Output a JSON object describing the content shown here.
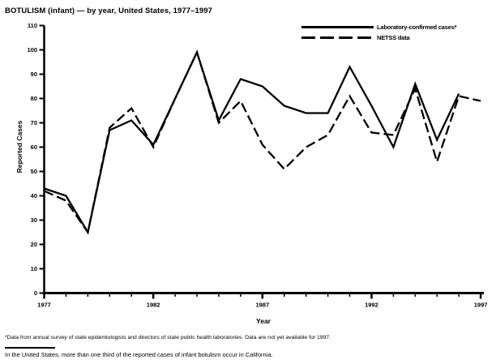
{
  "title": "BOTULISM (infant) — by year, United States, 1977–1997",
  "legend": [
    {
      "label": "Laboratory-confirmed cases*",
      "style": "solid"
    },
    {
      "label": "NETSS data",
      "style": "dashed"
    }
  ],
  "footnote": "*Data from annual survey of state epidemiologists and directors of state public health laboratories. Data are not yet available for 1997.",
  "note": "In the United States, more than one third of the reported cases of infant botulism occur in California.",
  "chart_data": {
    "type": "line",
    "title": "BOTULISM (infant) — by year, United States, 1977–1997",
    "xlabel": "Year",
    "ylabel": "Reported Cases",
    "ylim": [
      0,
      110
    ],
    "ytick_interval": 10,
    "grid": false,
    "legend_position": "top-right",
    "line_color": "#000000",
    "background": "#ffffff",
    "x": [
      1977,
      1978,
      1979,
      1980,
      1981,
      1982,
      1983,
      1984,
      1985,
      1986,
      1987,
      1988,
      1989,
      1990,
      1991,
      1992,
      1993,
      1994,
      1995,
      1996,
      1997
    ],
    "xticks": [
      1977,
      1982,
      1987,
      1992,
      1997
    ],
    "xticks_minor_every_years": 1,
    "series": [
      {
        "name": "Laboratory-confirmed cases*",
        "style": "solid",
        "values": [
          43,
          40,
          25,
          67,
          71,
          61,
          80,
          99,
          71,
          88,
          85,
          77,
          74,
          74,
          93,
          77,
          60,
          86,
          63,
          82,
          null
        ]
      },
      {
        "name": "NETSS data",
        "style": "dashed",
        "values": [
          42,
          38,
          25,
          68,
          76,
          60,
          80,
          99,
          70,
          79,
          61,
          51,
          60,
          65,
          81,
          66,
          65,
          84,
          54,
          81,
          79
        ]
      }
    ]
  }
}
